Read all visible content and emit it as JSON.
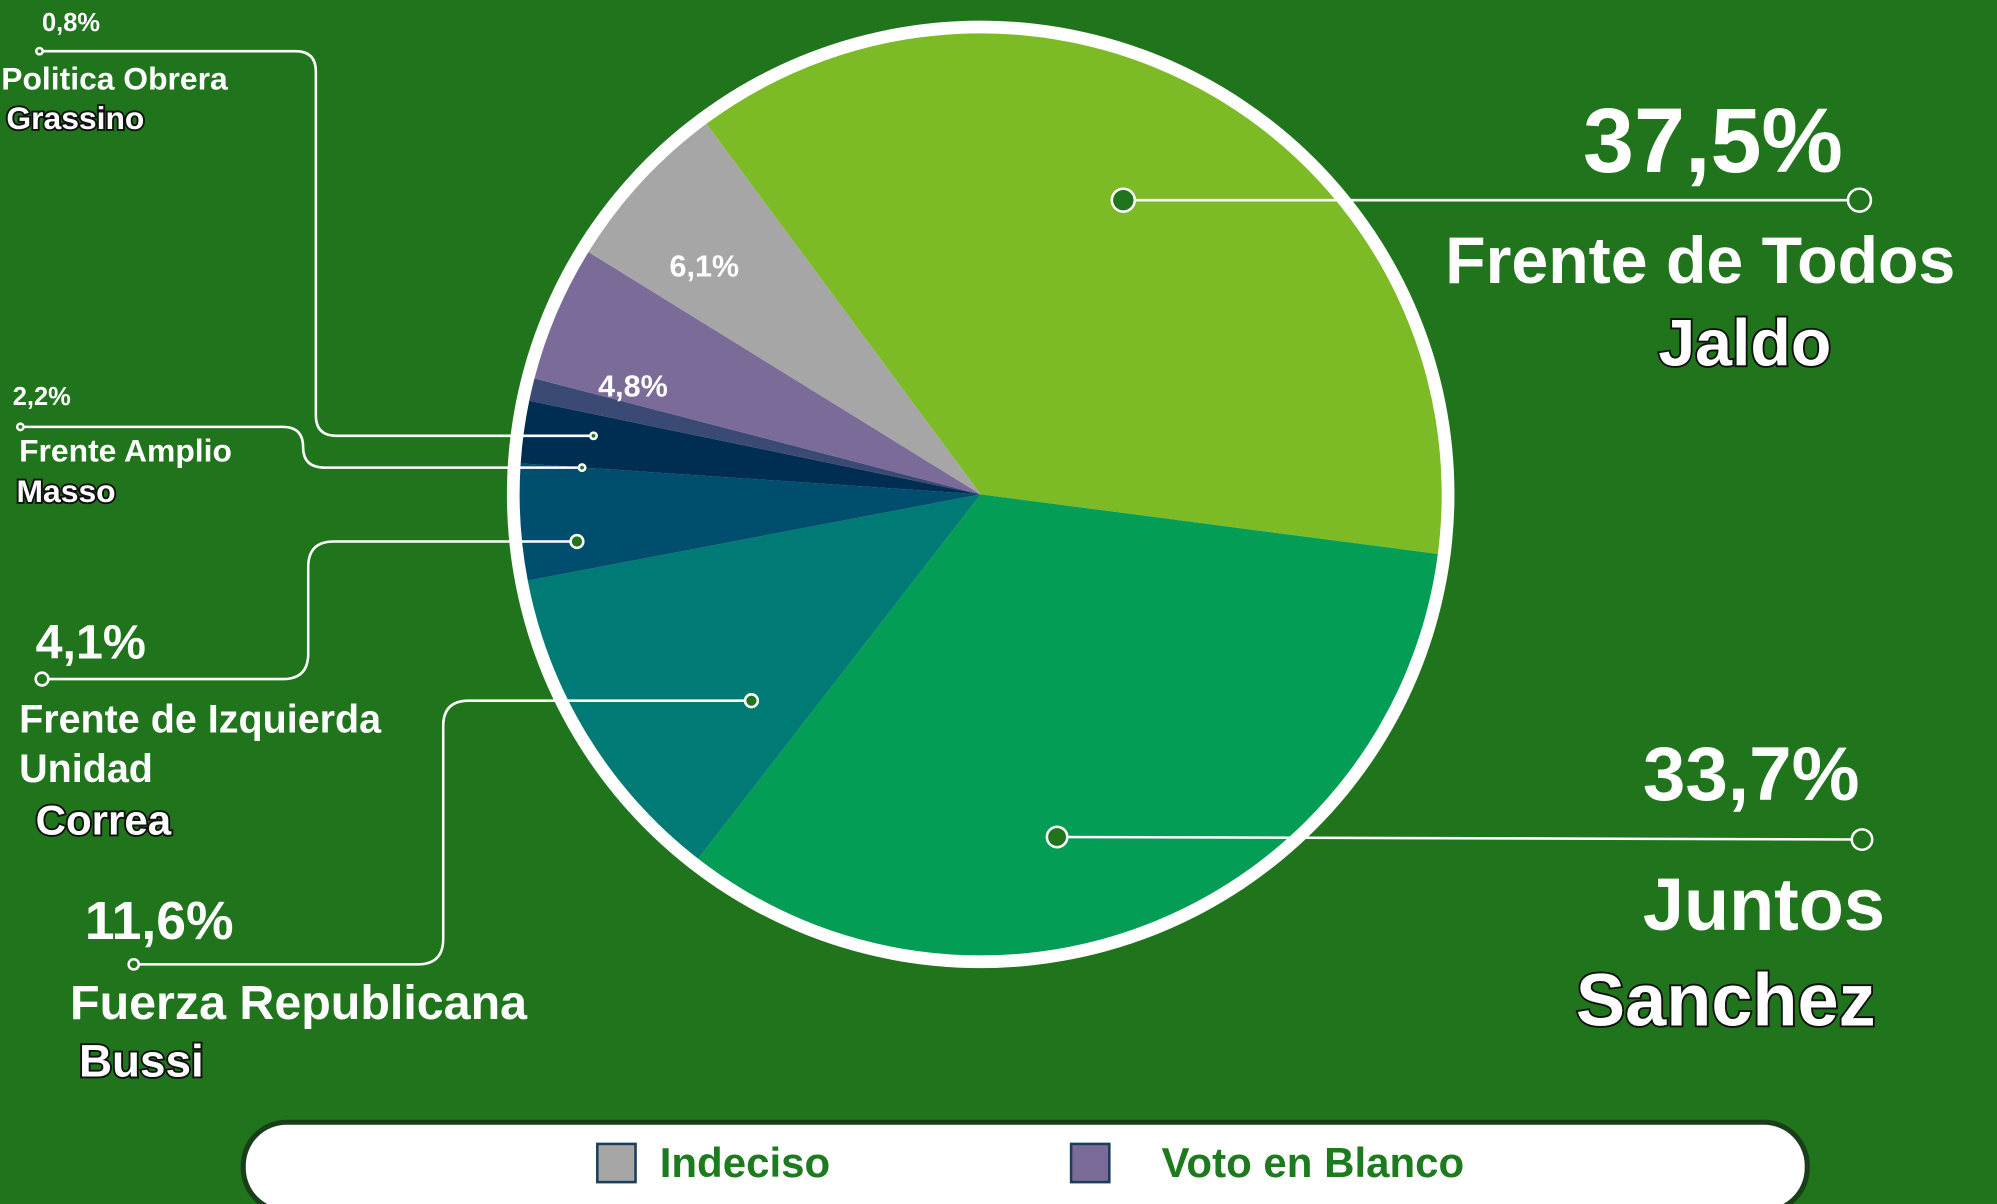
{
  "chart_data": {
    "type": "pie",
    "categories": [
      "Frente de Todos",
      "Juntos",
      "Fuerza Republicana",
      "Frente de Izquierda Unidad",
      "Frente Amplio",
      "Politica Obrera",
      "Voto en Blanco",
      "Indeciso"
    ],
    "candidates": [
      "Jaldo",
      "Sanchez",
      "Bussi",
      "Correa",
      "Masso",
      "Grassino",
      null,
      null
    ],
    "values": [
      37.5,
      33.7,
      11.6,
      4.1,
      2.2,
      0.8,
      4.8,
      6.1
    ],
    "value_labels": [
      "37,5%",
      "33,7%",
      "11,6%",
      "4,1%",
      "2,2%",
      "0,8%",
      "4,8%",
      "6,1%"
    ],
    "colors": [
      "#7cbb25",
      "#039d55",
      "#007a74",
      "#004e6d",
      "#002d52",
      "#3a4a74",
      "#7b6b99",
      "#a6a6a6"
    ],
    "legend": [
      7,
      6
    ]
  }
}
